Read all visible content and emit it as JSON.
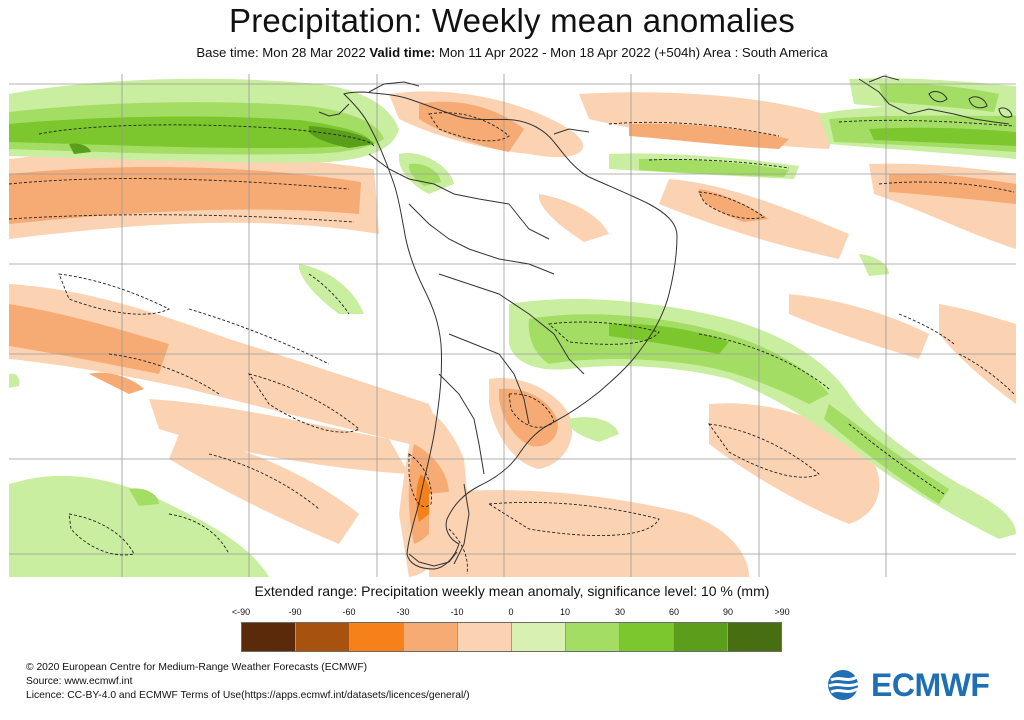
{
  "header": {
    "title": "Precipitation: Weekly mean anomalies",
    "base_time_label": "Base time:",
    "base_time": "Mon 28 Mar 2022",
    "valid_time_label": "Valid time:",
    "valid_time": "Mon 11 Apr 2022 - Mon 18 Apr 2022 (+504h)",
    "area_label": "Area :",
    "area": "South America"
  },
  "map": {
    "region": "South America",
    "colors": {
      "green_light": "#c9eea0",
      "green_mid": "#a3dd63",
      "green_strong": "#7cc62e",
      "green_dark": "#5a9e1b",
      "orange_light": "#fbd3b3",
      "orange_mid": "#f7ab74",
      "orange_strong": "#f6811a",
      "land_outline": "#333333",
      "grid": "#999999",
      "significance_contour": "#222222"
    }
  },
  "legend": {
    "title": "Extended range: Precipitation weekly mean anomaly, significance level: 10 % (mm)",
    "tick_labels": [
      "<-90",
      "-90",
      "-60",
      "-30",
      "-10",
      "0",
      "10",
      "30",
      "60",
      "90",
      ">90"
    ],
    "colors": [
      "#5b2a0b",
      "#a8520f",
      "#f6811a",
      "#f7ab74",
      "#fbd3b3",
      "#d8f1b3",
      "#a3dd63",
      "#7cc62e",
      "#5a9e1b",
      "#476f12"
    ]
  },
  "footer": {
    "copyright": "© 2020 European Centre for Medium-Range Weather Forecasts (ECMWF)",
    "source": "Source: www.ecmwf.int",
    "licence": "Licence: CC-BY-4.0 and ECMWF Terms of Use(https://apps.ecmwf.int/datasets/licences/general/)"
  },
  "logo": {
    "text": "ECMWF",
    "color": "#1e6fb4"
  }
}
